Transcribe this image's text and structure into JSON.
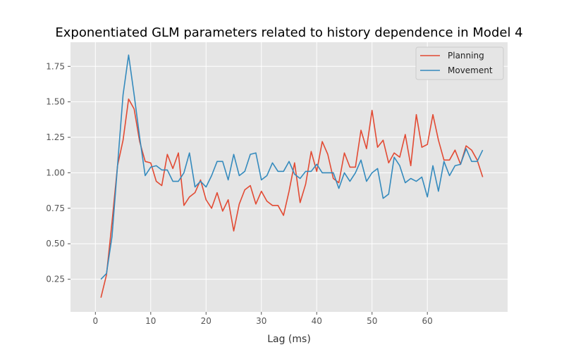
{
  "chart_data": {
    "type": "line",
    "title": "Exponentiated GLM parameters related to history dependence in Model 4",
    "xlabel": "Lag (ms)",
    "ylabel": "",
    "xlim": [
      -4.5,
      74.5
    ],
    "ylim": [
      0.02,
      1.92
    ],
    "xticks": [
      0,
      10,
      20,
      30,
      40,
      50,
      60
    ],
    "yticks": [
      0.25,
      0.5,
      0.75,
      1.0,
      1.25,
      1.5,
      1.75
    ],
    "ytick_labels": [
      "0.25",
      "0.50",
      "0.75",
      "1.00",
      "1.25",
      "1.50",
      "1.75"
    ],
    "grid": true,
    "legend_position": "top-right",
    "x": [
      1,
      2,
      3,
      4,
      5,
      6,
      7,
      8,
      9,
      10,
      11,
      12,
      13,
      14,
      15,
      16,
      17,
      18,
      19,
      20,
      21,
      22,
      23,
      24,
      25,
      26,
      27,
      28,
      29,
      30,
      31,
      32,
      33,
      34,
      35,
      36,
      37,
      38,
      39,
      40,
      41,
      42,
      43,
      44,
      45,
      46,
      47,
      48,
      49,
      50,
      51,
      52,
      53,
      54,
      55,
      56,
      57,
      58,
      59,
      60,
      61,
      62,
      63,
      64,
      65,
      66,
      67,
      68,
      69,
      70
    ],
    "series": [
      {
        "name": "Planning",
        "color": "#E24A33",
        "values": [
          0.12,
          0.28,
          0.65,
          1.05,
          1.23,
          1.52,
          1.45,
          1.22,
          1.08,
          1.07,
          0.94,
          0.91,
          1.13,
          1.03,
          1.14,
          0.77,
          0.83,
          0.86,
          0.95,
          0.81,
          0.75,
          0.86,
          0.73,
          0.81,
          0.59,
          0.78,
          0.88,
          0.91,
          0.78,
          0.87,
          0.8,
          0.77,
          0.77,
          0.7,
          0.87,
          1.07,
          0.79,
          0.92,
          1.15,
          1.01,
          1.22,
          1.13,
          0.96,
          0.93,
          1.14,
          1.04,
          1.04,
          1.3,
          1.17,
          1.44,
          1.18,
          1.23,
          1.07,
          1.14,
          1.11,
          1.27,
          1.05,
          1.41,
          1.18,
          1.2,
          1.41,
          1.23,
          1.09,
          1.09,
          1.16,
          1.06,
          1.19,
          1.16,
          1.09,
          0.97
        ]
      },
      {
        "name": "Movement",
        "color": "#348ABD",
        "values": [
          0.25,
          0.29,
          0.55,
          1.05,
          1.55,
          1.83,
          1.55,
          1.25,
          0.98,
          1.04,
          1.05,
          1.02,
          1.02,
          0.94,
          0.94,
          1.0,
          1.14,
          0.9,
          0.94,
          0.9,
          0.98,
          1.08,
          1.08,
          0.95,
          1.13,
          0.98,
          1.01,
          1.13,
          1.14,
          0.95,
          0.98,
          1.07,
          1.01,
          1.01,
          1.08,
          0.99,
          0.96,
          1.01,
          1.01,
          1.06,
          1.0,
          1.0,
          1.0,
          0.89,
          1.0,
          0.94,
          1.0,
          1.09,
          0.94,
          1.0,
          1.03,
          0.82,
          0.85,
          1.11,
          1.05,
          0.93,
          0.96,
          0.94,
          0.97,
          0.83,
          1.05,
          0.87,
          1.08,
          0.98,
          1.05,
          1.06,
          1.17,
          1.08,
          1.08,
          1.16
        ]
      }
    ]
  }
}
